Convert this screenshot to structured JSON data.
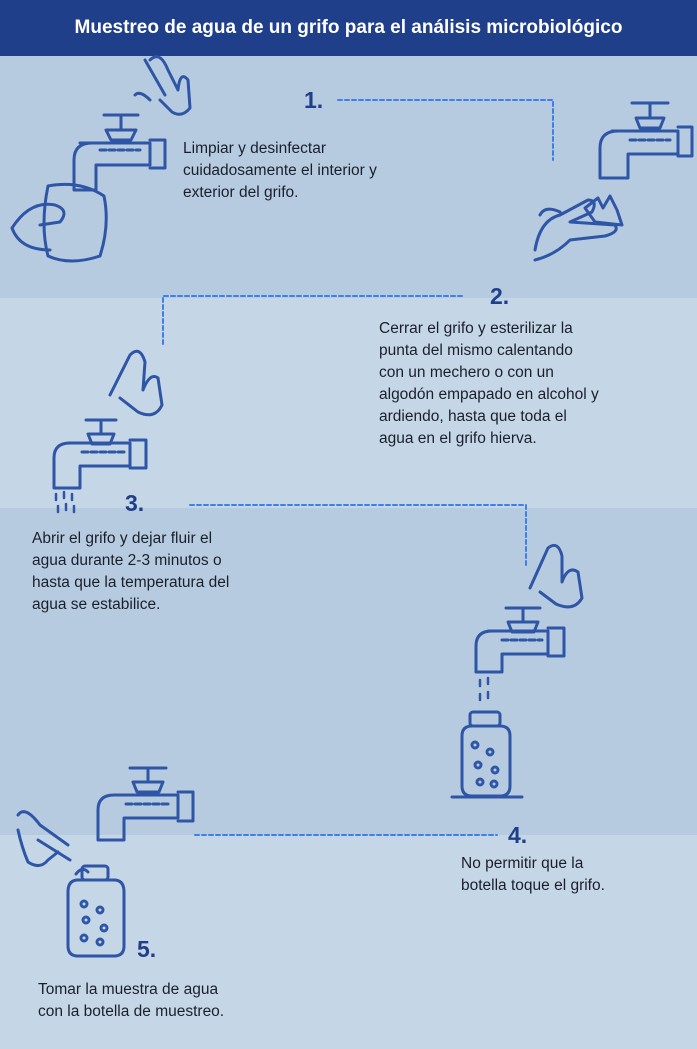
{
  "title": "Muestreo de agua de un grifo para el análisis microbiológico",
  "colors": {
    "header": "#1f3f8a",
    "accent": "#2f56a6",
    "dash": "#3e7fe8",
    "band_dark": "#b6cbdf",
    "band_light": "#c5d7e6"
  },
  "steps": [
    {
      "number": "1.",
      "text": "Limpiar y desinfectar\ncuidadosamente el interior y\nexterior del grifo."
    },
    {
      "number": "2.",
      "text": "Cerrar el grifo y esterilizar la\npunta del mismo calentando\ncon un mechero o con un\nalgodón empapado en alcohol y\nardiendo, hasta que toda el\nagua en el grifo hierva."
    },
    {
      "number": "3.",
      "text": "Abrir el grifo y dejar fluir el\nagua durante 2-3 minutos o\nhasta que la temperatura del\nagua se estabilice."
    },
    {
      "number": "4.",
      "text": "No permitir que la\nbotella toque el grifo."
    },
    {
      "number": "5.",
      "text": "Tomar la muestra de agua\ncon la botella de muestreo."
    }
  ],
  "icons": [
    "faucet-icon",
    "hand-icon",
    "cloth-icon",
    "flame-icon",
    "water-drops-icon",
    "bottle-icon"
  ]
}
